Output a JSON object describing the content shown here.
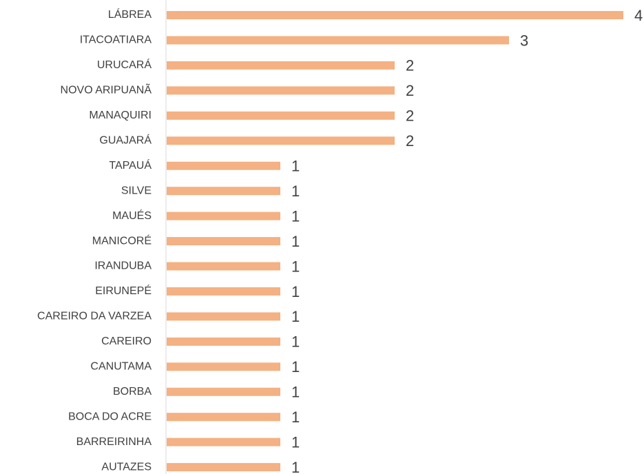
{
  "chart_data": {
    "type": "barh",
    "color": "#f4b183",
    "categories": [
      "LÁBREA",
      "ITACOATIARA",
      "URUCARÁ",
      "NOVO ARIPUANÃ",
      "MANAQUIRI",
      "GUAJARÁ",
      "TAPAUÁ",
      "SILVE",
      "MAUÉS",
      "MANICORÉ",
      "IRANDUBA",
      "EIRUNEPÉ",
      "CAREIRO DA VARZEA",
      "CAREIRO",
      "CANUTAMA",
      "BORBA",
      "BOCA DO ACRE",
      "BARREIRINHA",
      "AUTAZES"
    ],
    "values": [
      4,
      3,
      2,
      2,
      2,
      2,
      1,
      1,
      1,
      1,
      1,
      1,
      1,
      1,
      1,
      1,
      1,
      1,
      1
    ]
  }
}
